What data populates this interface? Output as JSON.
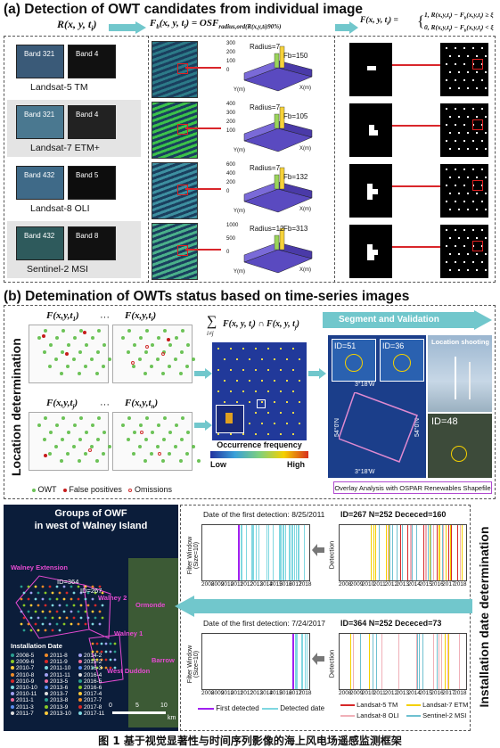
{
  "section_a": {
    "title": "(a) Detection of  OWT candidates from individual image",
    "formula_left": "R(x, y, t",
    "formula_left_sub": "i",
    "formula_left_end": ")",
    "formula_mid": "F",
    "formula_mid_rest": "b(x, y, t",
    "formula_mid_eq": ") = OSF",
    "formula_mid_sub": "radius,ord(R(x,y,t",
    "formula_mid_sub_end": ")90%)",
    "formula_right_lhs": "F(x, y, t",
    "formula_right_case1": "1, R(x,y,t",
    "formula_right_case1_end": ") − F",
    "formula_right_case1_tail": "(x,y,t",
    "formula_right_case1_cond": ") ≥ ξ",
    "formula_right_case2": "0, R(x,y,t",
    "formula_right_case2_cond": ") < ξ",
    "rows": [
      {
        "sensor": "Landsat-5 TM",
        "band_rgb": "Band 321",
        "band_single": "Band 4",
        "radius": "Radius=7",
        "fb": "Fb=150"
      },
      {
        "sensor": "Landsat-7 ETM+",
        "band_rgb": "Band 321",
        "band_single": "Band 4",
        "radius": "Radius=7",
        "fb": "Fb=105"
      },
      {
        "sensor": "Landsat-8 OLI",
        "band_rgb": "Band 432",
        "band_single": "Band 5",
        "radius": "Radius=7",
        "fb": "Fb=132"
      },
      {
        "sensor": "Sentinel-2 MSI",
        "band_rgb": "Band 432",
        "band_single": "Band 8",
        "radius": "Radius=12",
        "fb": "Fb=313"
      }
    ],
    "plot_axes": {
      "y": "Y(m)",
      "x": "X(m)"
    },
    "plot_ticks": [
      [
        "300",
        "200",
        "100",
        "0"
      ],
      [
        "400",
        "300",
        "200",
        "100"
      ],
      [
        "600",
        "400",
        "200",
        "0"
      ],
      [
        "1000",
        "500",
        "0"
      ]
    ]
  },
  "section_b": {
    "title": "(b) Detemination of OWTs status based on time-series images",
    "location_label": "Location determination",
    "grid_labels": [
      "F(x,y,t",
      "F(x,y,t",
      "F(x,y,t",
      "F(x,y,t"
    ],
    "grid_subs": [
      "1",
      "i",
      "j",
      "n"
    ],
    "ellipsis": "···",
    "sum_formula": "F(x, y, t",
    "sum_formula_mid": ") ∩ F(x, y, t",
    "sum_top": "∑",
    "sum_sub": "i≠j",
    "legend_owt": "OWT",
    "legend_fp": "False positives",
    "legend_om": "Omissions",
    "occ_label": "Occurrence frequency",
    "low": "Low",
    "high": "High",
    "segment_label": "Segment and Validation",
    "id51": "ID=51",
    "id36": "ID=36",
    "location_shooting": "Location shooting",
    "id48": "ID=48",
    "coord_top": "3°18'W",
    "coord_left": "54°0'N",
    "coord_right": "54°0'N",
    "coord_bottom": "3°18'W",
    "overlay_label": "Overlay Analysis with OSPAR Renewables Shapefile",
    "install_label": "Installation date  determination"
  },
  "section_c": {
    "map_title_1": "Groups of OWF",
    "map_title_2": "in west of Walney Island",
    "areas": [
      "Walney Extension",
      "Walney 2",
      "Ormonde",
      "Walney 1",
      "Barrow",
      "West Duddon"
    ],
    "map_ids": [
      "ID=364",
      "ID=267"
    ],
    "install_date_title": "Installation Date",
    "install_dates": [
      [
        "2008-5",
        "2011-8",
        "2014-2"
      ],
      [
        "2009-6",
        "2011-9",
        "2015-2"
      ],
      [
        "2010-7",
        "2011-10",
        "2016-3"
      ],
      [
        "2010-8",
        "2011-11",
        "2016-4"
      ],
      [
        "2010-9",
        "2013-5",
        "2016-5"
      ],
      [
        "2010-10",
        "2013-6",
        "2016-6"
      ],
      [
        "2010-11",
        "2013-7",
        "2017-4"
      ],
      [
        "2011-1",
        "2013-8",
        "2017-7"
      ],
      [
        "2011-3",
        "2013-9",
        "2017-8"
      ],
      [
        "2011-7",
        "2013-10",
        "2017-11"
      ]
    ],
    "scale": [
      "0",
      "5",
      "10"
    ],
    "scale_unit": "km"
  },
  "timeline_top": {
    "detect_text": "Date of the first detection:  8/25/2011",
    "ylabel": "Filter Window\n(Size=10)",
    "years": [
      "2008",
      "2009",
      "2010",
      "2011",
      "2012",
      "2013",
      "2014",
      "2015",
      "2016",
      "2017",
      "2018"
    ],
    "id_text": "ID=267  N=252  Dececed=160",
    "ylabel2": "Detection"
  },
  "timeline_bottom": {
    "detect_text": "Date of the first detection:  7/24/2017",
    "ylabel": "Filter Window\n(Size=10)",
    "years": [
      "2008",
      "2009",
      "2010",
      "2011",
      "2012",
      "2013",
      "2014",
      "2015",
      "2016",
      "2017",
      "2018"
    ],
    "id_text": "ID=364  N=252  Dececed=73",
    "ylabel2": "Detection"
  },
  "legend_bottom": {
    "first_detected": "First detected",
    "detected_date": "Detected date",
    "l5": "Landsat-5 TM",
    "l7": "Landsat-7 ETM",
    "l8": "Landsat-8 OLI",
    "s2": "Sentinel-2 MSI"
  },
  "colors": {
    "arrow": "#71c7cc",
    "first_detected": "#a020f0",
    "detected": "#7fd7e0",
    "l5": "#d62728",
    "l7": "#f4d000",
    "l8": "#f0b0b8",
    "s2": "#6ec0d0"
  },
  "caption": "图 1  基于视觉显著性与时间序列影像的海上风电场遥感监测框架"
}
